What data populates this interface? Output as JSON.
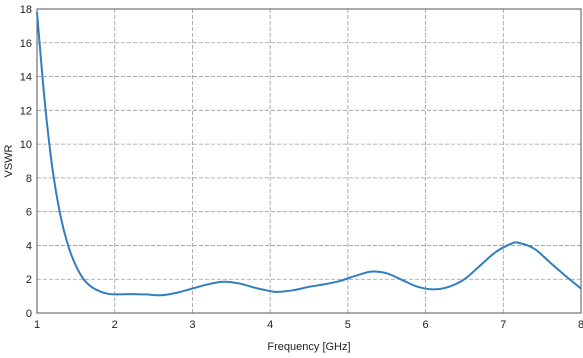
{
  "chart_data": {
    "type": "line",
    "title": "",
    "xlabel": "Frequency [GHz]",
    "ylabel": "VSWR",
    "xlim": [
      1,
      8
    ],
    "ylim": [
      0,
      18
    ],
    "xticks": [
      1,
      2,
      3,
      4,
      5,
      6,
      7,
      8
    ],
    "yticks": [
      0,
      2,
      4,
      6,
      8,
      10,
      12,
      14,
      16,
      18
    ],
    "grid": true,
    "legend": "none",
    "series": [
      {
        "color": "#2f7fc1",
        "x": [
          1.0,
          1.1,
          1.2,
          1.3,
          1.4,
          1.5,
          1.6,
          1.7,
          1.8,
          1.9,
          2.0,
          2.2,
          2.4,
          2.6,
          2.8,
          3.0,
          3.2,
          3.4,
          3.6,
          3.8,
          4.0,
          4.1,
          4.3,
          4.5,
          4.7,
          4.9,
          5.1,
          5.3,
          5.5,
          5.7,
          5.9,
          6.1,
          6.3,
          6.5,
          6.7,
          6.9,
          7.1,
          7.2,
          7.4,
          7.6,
          7.8,
          8.0
        ],
        "y": [
          17.8,
          12.5,
          8.5,
          5.8,
          4.0,
          2.8,
          2.0,
          1.55,
          1.3,
          1.15,
          1.1,
          1.12,
          1.1,
          1.05,
          1.2,
          1.45,
          1.7,
          1.85,
          1.75,
          1.5,
          1.3,
          1.25,
          1.35,
          1.55,
          1.7,
          1.9,
          2.2,
          2.45,
          2.35,
          1.95,
          1.55,
          1.4,
          1.55,
          2.0,
          2.8,
          3.6,
          4.1,
          4.15,
          3.8,
          3.0,
          2.2,
          1.45
        ]
      }
    ]
  }
}
